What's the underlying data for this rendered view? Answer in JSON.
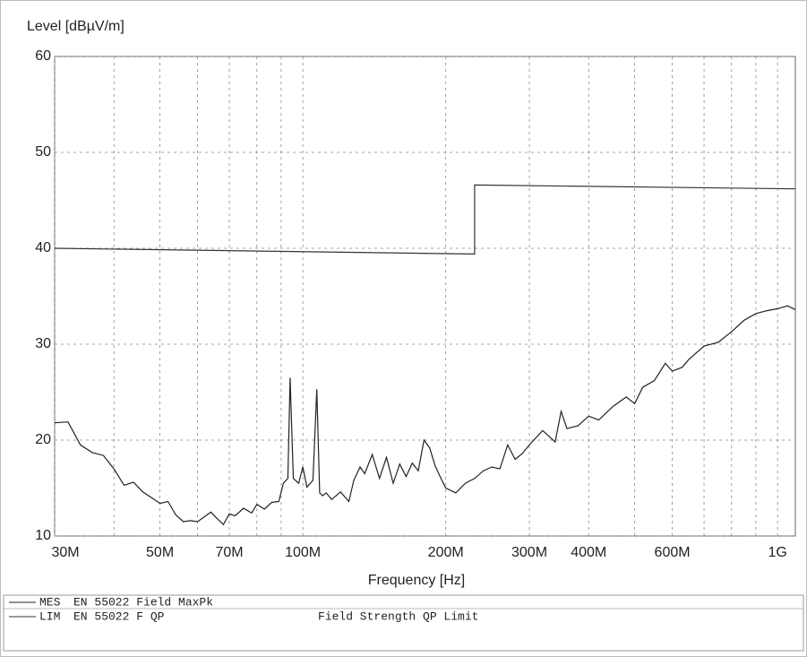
{
  "chart_data": {
    "type": "line",
    "ylabel": "Level [dBµV/m]",
    "xlabel": "Frequency [Hz]",
    "log_x": true,
    "grid": true,
    "xlim": [
      30000000,
      1090000000
    ],
    "xticks": [
      {
        "value": 30000000,
        "label": "30M"
      },
      {
        "value": 50000000,
        "label": "50M"
      },
      {
        "value": 70000000,
        "label": "70M"
      },
      {
        "value": 100000000,
        "label": "100M"
      },
      {
        "value": 200000000,
        "label": "200M"
      },
      {
        "value": 300000000,
        "label": "300M"
      },
      {
        "value": 400000000,
        "label": "400M"
      },
      {
        "value": 600000000,
        "label": "600M"
      },
      {
        "value": 1000000000,
        "label": "1G"
      }
    ],
    "x_minor_ticks": [
      40000000,
      60000000,
      80000000,
      90000000,
      500000000,
      700000000,
      800000000,
      900000000
    ],
    "ylim": [
      10,
      60
    ],
    "yticks": [
      10,
      20,
      30,
      40,
      50,
      60
    ],
    "series": [
      {
        "name": "MES",
        "description": "EN 55022 Field MaxPk",
        "color": "#222222",
        "x": [
          30000000,
          32000000,
          34000000,
          36000000,
          38000000,
          40000000,
          42000000,
          44000000,
          46000000,
          48000000,
          50000000,
          52000000,
          54000000,
          56000000,
          58000000,
          60000000,
          62000000,
          64000000,
          66000000,
          68000000,
          70000000,
          72000000,
          75000000,
          78000000,
          80000000,
          83000000,
          86000000,
          89000000,
          91000000,
          93000000,
          94000000,
          95500000,
          98000000,
          100000000,
          102000000,
          105000000,
          107000000,
          108500000,
          110000000,
          112000000,
          115000000,
          120000000,
          125000000,
          128000000,
          132000000,
          135000000,
          140000000,
          145000000,
          150000000,
          155000000,
          160000000,
          165000000,
          170000000,
          175000000,
          180000000,
          185000000,
          190000000,
          195000000,
          200000000,
          210000000,
          220000000,
          230000000,
          240000000,
          250000000,
          260000000,
          270000000,
          280000000,
          290000000,
          300000000,
          320000000,
          340000000,
          350000000,
          360000000,
          380000000,
          400000000,
          420000000,
          450000000,
          480000000,
          500000000,
          520000000,
          550000000,
          580000000,
          600000000,
          630000000,
          650000000,
          700000000,
          750000000,
          800000000,
          850000000,
          900000000,
          950000000,
          1000000000,
          1050000000,
          1090000000
        ],
        "values": [
          21.8,
          21.9,
          19.5,
          18.7,
          18.4,
          17,
          15.3,
          15.6,
          14.6,
          14,
          13.4,
          13.6,
          12.2,
          11.5,
          11.6,
          11.5,
          12,
          12.5,
          11.8,
          11.2,
          12.3,
          12.1,
          12.9,
          12.4,
          13.3,
          12.8,
          13.5,
          13.6,
          15.5,
          16,
          26.5,
          16,
          15.5,
          17.2,
          15.1,
          15.8,
          25.3,
          14.5,
          14.2,
          14.5,
          13.8,
          14.6,
          13.6,
          15.8,
          17.2,
          16.5,
          18.5,
          16,
          18.2,
          15.5,
          17.5,
          16.2,
          17.6,
          16.8,
          20,
          19.2,
          17.3,
          16.1,
          15,
          14.5,
          15.5,
          16,
          16.8,
          17.2,
          17,
          19.5,
          18,
          18.6,
          19.5,
          21,
          19.8,
          23,
          21.2,
          21.5,
          22.5,
          22.1,
          23.5,
          24.5,
          23.8,
          25.5,
          26.2,
          28,
          27.2,
          27.6,
          28.4,
          29.8,
          30.2,
          31.3,
          32.5,
          33.2,
          33.5,
          33.7,
          34,
          33.6
        ]
      },
      {
        "name": "LIM",
        "description": "EN 55022 F QP",
        "note": "Field Strength QP Limit",
        "color": "#333333",
        "x": [
          30000000,
          230000000,
          230000000,
          1090000000
        ],
        "values": [
          40,
          39.4,
          46.6,
          46.2
        ]
      }
    ]
  }
}
